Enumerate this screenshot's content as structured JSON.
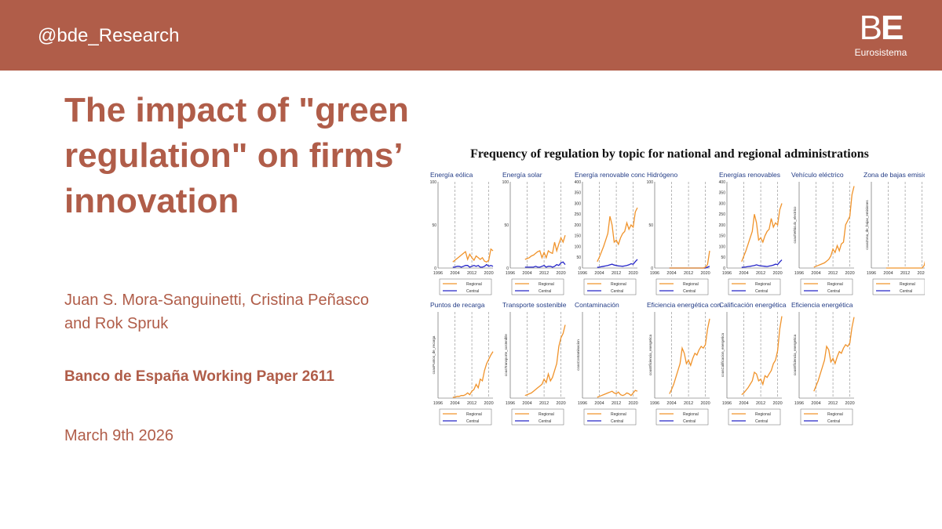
{
  "header": {
    "handle": "@bde_Research",
    "logo": {
      "mark_left": "B",
      "mark_right": "E",
      "subtitle": "Eurosistema"
    },
    "background_color": "#b05d49"
  },
  "slide": {
    "title": "The impact of \"green regulation\" on firms’ innovation",
    "authors": "Juan S. Mora-Sanguinetti, Cristina Peñasco and Rok Spruk",
    "paper": "Banco de España Working Paper 2611",
    "date": "March 9th 2026",
    "accent_color": "#b05d49"
  },
  "chart_data": {
    "type": "line",
    "title": "Frequency of regulation by topic for national and regional administrations",
    "x_ticks": [
      "1996",
      "2004",
      "2012",
      "2020"
    ],
    "legend": {
      "regional": "Regional",
      "central": "Central"
    },
    "colors": {
      "regional": "#f0932b",
      "central": "#2424c8"
    },
    "years": [
      1996,
      1997,
      1998,
      1999,
      2000,
      2001,
      2002,
      2003,
      2004,
      2005,
      2006,
      2007,
      2008,
      2009,
      2010,
      2011,
      2012,
      2013,
      2014,
      2015,
      2016,
      2017,
      2018,
      2019,
      2020,
      2021,
      2022
    ],
    "panels": [
      {
        "title": "Energía eólica",
        "ylabel": "",
        "ylim": [
          0,
          100
        ],
        "yticks": [
          "0",
          "50",
          "100"
        ],
        "show_central": true,
        "regional": [
          null,
          null,
          null,
          null,
          null,
          null,
          null,
          7,
          9,
          11,
          13,
          15,
          17,
          19,
          10,
          16,
          12,
          9,
          14,
          12,
          10,
          12,
          8,
          7,
          9,
          22,
          20
        ],
        "central": [
          null,
          null,
          null,
          null,
          null,
          null,
          null,
          1,
          1,
          2,
          2,
          1,
          2,
          3,
          3,
          1,
          2,
          3,
          2,
          3,
          1,
          1,
          2,
          4,
          2,
          3,
          2
        ]
      },
      {
        "title": "Energía solar",
        "ylabel": "",
        "ylim": [
          0,
          100
        ],
        "yticks": [
          "0",
          "50",
          "100"
        ],
        "show_central": true,
        "regional": [
          null,
          null,
          null,
          null,
          null,
          null,
          null,
          10,
          11,
          12,
          14,
          15,
          17,
          19,
          20,
          12,
          18,
          12,
          20,
          18,
          17,
          30,
          20,
          28,
          35,
          30,
          38
        ],
        "central": [
          null,
          null,
          null,
          null,
          null,
          null,
          null,
          1,
          1,
          1,
          1,
          1,
          2,
          1,
          1,
          2,
          3,
          1,
          2,
          2,
          1,
          2,
          4,
          3,
          6,
          7,
          4
        ]
      },
      {
        "title": "Energía renovable conc",
        "ylabel": "",
        "ylim": [
          0,
          400
        ],
        "yticks": [
          "0",
          "50",
          "100",
          "150",
          "200",
          "250",
          "300",
          "350",
          "400"
        ],
        "show_central": true,
        "regional": [
          null,
          null,
          null,
          null,
          null,
          null,
          null,
          30,
          50,
          75,
          100,
          130,
          160,
          240,
          200,
          120,
          130,
          110,
          140,
          160,
          170,
          210,
          180,
          200,
          190,
          260,
          280
        ],
        "central": [
          null,
          null,
          null,
          null,
          null,
          null,
          null,
          3,
          4,
          6,
          8,
          10,
          12,
          15,
          18,
          14,
          12,
          10,
          9,
          8,
          10,
          12,
          15,
          20,
          18,
          30,
          40
        ]
      },
      {
        "title": "Hidrógeno",
        "ylabel": "",
        "ylim": [
          0,
          100
        ],
        "yticks": [
          "0",
          "50",
          "100"
        ],
        "show_central": true,
        "regional": [
          null,
          null,
          null,
          null,
          null,
          null,
          null,
          0,
          0,
          0,
          0,
          0,
          0,
          0,
          0,
          0,
          0,
          0,
          0,
          0,
          0,
          0,
          0,
          0,
          1,
          4,
          20
        ],
        "central": [
          null,
          null,
          null,
          null,
          null,
          null,
          null,
          0,
          0,
          0,
          0,
          0,
          0,
          0,
          0,
          0,
          0,
          0,
          0,
          0,
          0,
          0,
          0,
          0,
          0,
          1,
          2
        ]
      },
      {
        "title": "Energías renovables",
        "ylabel": "",
        "ylim": [
          0,
          400
        ],
        "yticks": [
          "0",
          "50",
          "100",
          "150",
          "200",
          "250",
          "300",
          "350",
          "400"
        ],
        "show_central": true,
        "regional": [
          null,
          null,
          null,
          null,
          null,
          null,
          null,
          30,
          55,
          80,
          110,
          140,
          170,
          250,
          210,
          130,
          140,
          120,
          150,
          170,
          180,
          230,
          190,
          210,
          200,
          270,
          300
        ],
        "central": [
          null,
          null,
          null,
          null,
          null,
          null,
          null,
          3,
          4,
          5,
          7,
          8,
          10,
          12,
          15,
          12,
          10,
          9,
          8,
          7,
          9,
          11,
          14,
          18,
          16,
          28,
          38
        ]
      },
      {
        "title": "Vehículo eléctrico",
        "ylabel": "coas/Vehiculo_electrico",
        "ylim": [
          0,
          100
        ],
        "yticks": [],
        "show_central": false,
        "regional": [
          null,
          null,
          null,
          null,
          null,
          null,
          null,
          1,
          2,
          3,
          4,
          5,
          6,
          8,
          10,
          14,
          22,
          18,
          26,
          20,
          28,
          30,
          50,
          55,
          60,
          85,
          95
        ],
        "central": []
      },
      {
        "title": "Zona de bajas emisiones",
        "ylabel": "coasZona_de_bajas_emisiones",
        "ylim": [
          0,
          100
        ],
        "yticks": [],
        "show_central": false,
        "regional": [
          null,
          null,
          null,
          null,
          null,
          null,
          null,
          0,
          0,
          0,
          0,
          0,
          0,
          0,
          0,
          0,
          0,
          0,
          0,
          0,
          0,
          0,
          0,
          0,
          0,
          3,
          14
        ],
        "central": []
      },
      {
        "title": "Puntos de recarga",
        "ylabel": "coasPuntos_de_recarga",
        "ylim": [
          0,
          100
        ],
        "yticks": [],
        "show_central": false,
        "regional": [
          null,
          null,
          null,
          null,
          null,
          null,
          null,
          1,
          1,
          2,
          2,
          3,
          3,
          4,
          6,
          4,
          8,
          10,
          16,
          12,
          22,
          20,
          32,
          40,
          45,
          50,
          54
        ],
        "central": []
      },
      {
        "title": "Transporte sostenible",
        "ylabel": "coasTransporte_sostenible",
        "ylim": [
          0,
          100
        ],
        "yticks": [],
        "show_central": false,
        "regional": [
          null,
          null,
          null,
          null,
          null,
          null,
          null,
          3,
          4,
          5,
          6,
          8,
          10,
          12,
          14,
          16,
          22,
          18,
          28,
          20,
          24,
          32,
          40,
          60,
          70,
          75,
          85
        ],
        "central": []
      },
      {
        "title": "Contaminación",
        "ylabel": "coasContaminacion",
        "ylim": [
          0,
          100
        ],
        "yticks": [],
        "show_central": false,
        "regional": [
          null,
          null,
          null,
          null,
          null,
          null,
          null,
          1,
          2,
          3,
          4,
          5,
          6,
          7,
          8,
          6,
          5,
          7,
          4,
          3,
          4,
          6,
          5,
          3,
          6,
          9,
          8
        ],
        "central": []
      },
      {
        "title": "Eficiencia energética con",
        "ylabel": "coasEficiencia_energetica",
        "ylim": [
          0,
          100
        ],
        "yticks": [],
        "show_central": false,
        "regional": [
          null,
          null,
          null,
          null,
          null,
          null,
          null,
          5,
          10,
          16,
          24,
          32,
          40,
          58,
          52,
          40,
          44,
          38,
          46,
          52,
          50,
          56,
          60,
          58,
          62,
          80,
          92
        ],
        "central": []
      },
      {
        "title": "Calificación energética",
        "ylabel": "coasCalificacion_energetica",
        "ylim": [
          0,
          100
        ],
        "yticks": [],
        "show_central": false,
        "regional": [
          null,
          null,
          null,
          null,
          null,
          null,
          null,
          4,
          6,
          9,
          12,
          16,
          20,
          30,
          28,
          20,
          22,
          16,
          26,
          24,
          28,
          32,
          40,
          44,
          55,
          80,
          95
        ],
        "central": []
      },
      {
        "title": "Eficiencia energética",
        "ylabel": "coasEficiencia_energetica",
        "ylim": [
          0,
          100
        ],
        "yticks": [],
        "show_central": false,
        "regional": [
          null,
          null,
          null,
          null,
          null,
          null,
          null,
          8,
          14,
          20,
          28,
          36,
          44,
          60,
          56,
          42,
          46,
          40,
          48,
          54,
          52,
          58,
          62,
          60,
          64,
          82,
          94
        ],
        "central": []
      }
    ]
  }
}
